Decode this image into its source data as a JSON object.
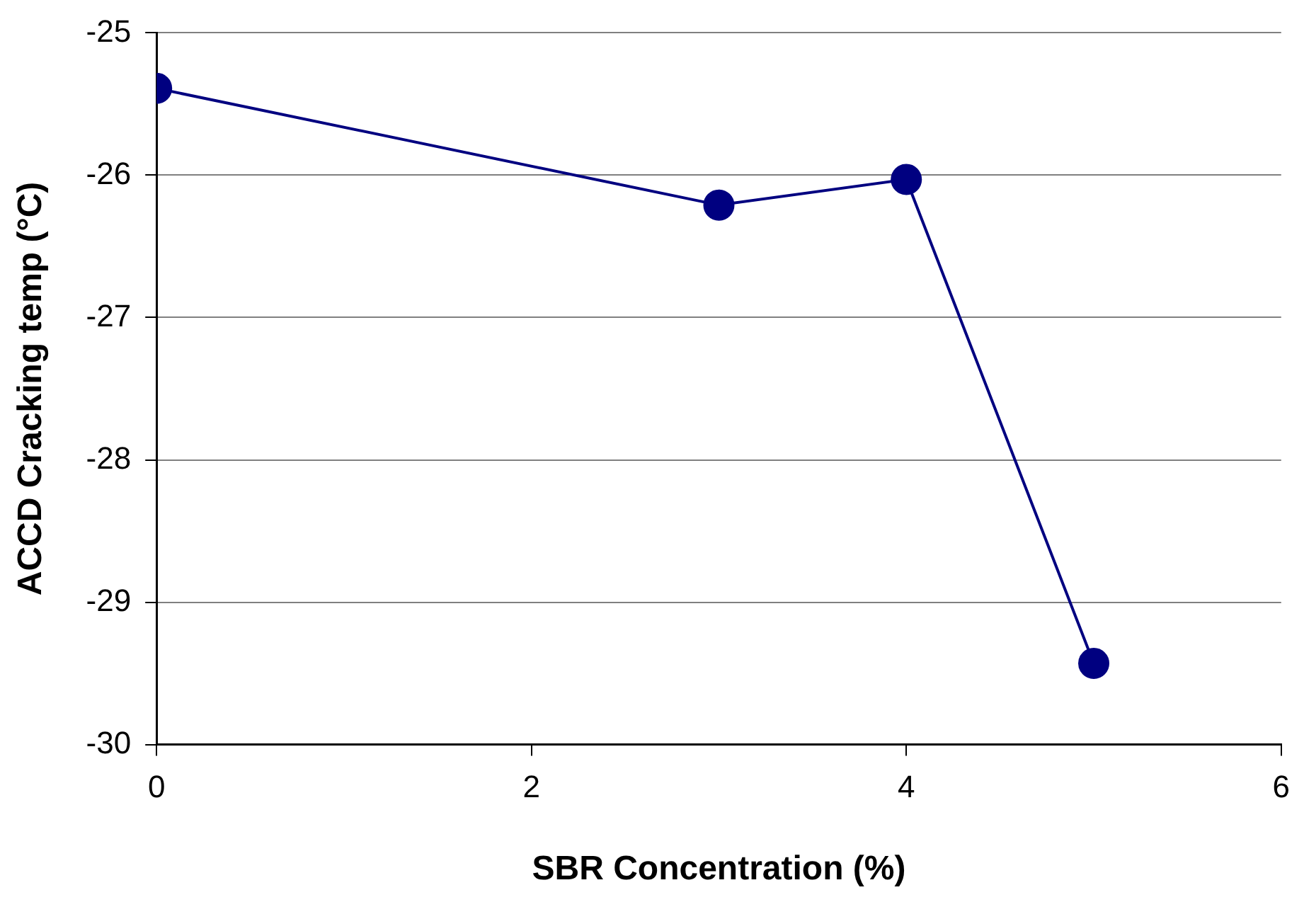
{
  "chart_data": {
    "type": "line",
    "xlabel": "SBR Concentration (%)",
    "ylabel": "ACCD Cracking temp (°C)",
    "x": [
      0,
      3,
      4,
      5
    ],
    "series": [
      {
        "color": "#000080",
        "values": [
          -25.39,
          -26.21,
          -26.03,
          -29.43
        ]
      }
    ],
    "xlim": [
      0,
      6
    ],
    "xticks": [
      0,
      2,
      4,
      6
    ],
    "ylim": [
      -30,
      -25
    ],
    "yticks": [
      -30,
      -29,
      -28,
      -27,
      -26,
      -25
    ],
    "grid": "y",
    "marker": "circle",
    "line_style": "solid",
    "legend": false
  }
}
